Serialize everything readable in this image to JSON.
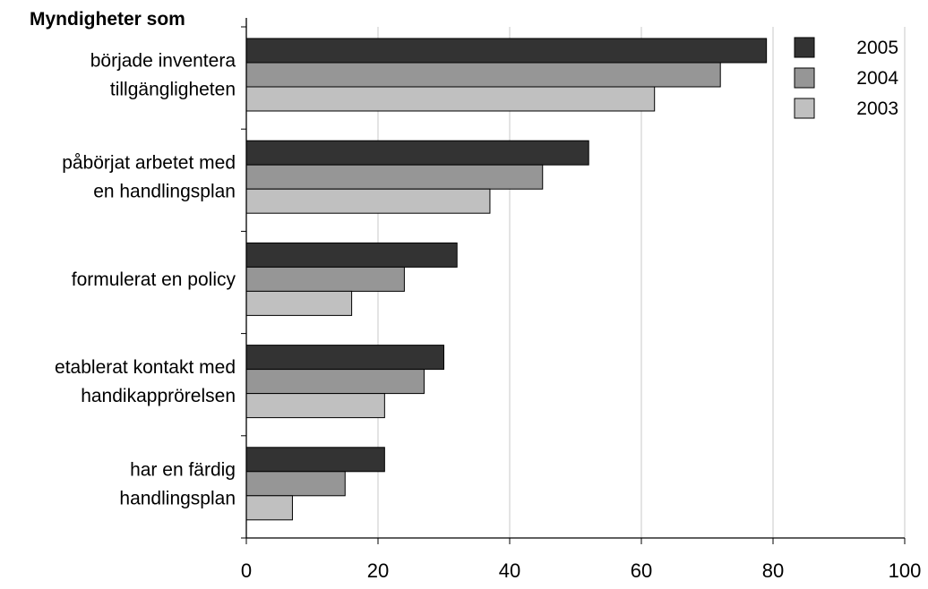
{
  "chart_data": {
    "type": "bar",
    "orientation": "horizontal",
    "title": "Myndigheter som",
    "categories": [
      [
        "började inventera",
        "tillgängligheten"
      ],
      [
        "påbörjat arbetet med",
        "en handlingsplan"
      ],
      [
        "formulerat en policy"
      ],
      [
        "etablerat kontakt med",
        "handikapprörelsen"
      ],
      [
        "har en färdig",
        "handlingsplan"
      ]
    ],
    "series": [
      {
        "name": "2005",
        "color": "#333333",
        "values": [
          79,
          52,
          32,
          30,
          21
        ]
      },
      {
        "name": "2004",
        "color": "#969696",
        "values": [
          72,
          45,
          24,
          27,
          15
        ]
      },
      {
        "name": "2003",
        "color": "#c0c0c0",
        "values": [
          62,
          37,
          16,
          21,
          7
        ]
      }
    ],
    "xlim": [
      0,
      100
    ],
    "xticks": [
      0,
      20,
      40,
      60,
      80,
      100
    ],
    "grid": true,
    "legend": "top-right"
  }
}
